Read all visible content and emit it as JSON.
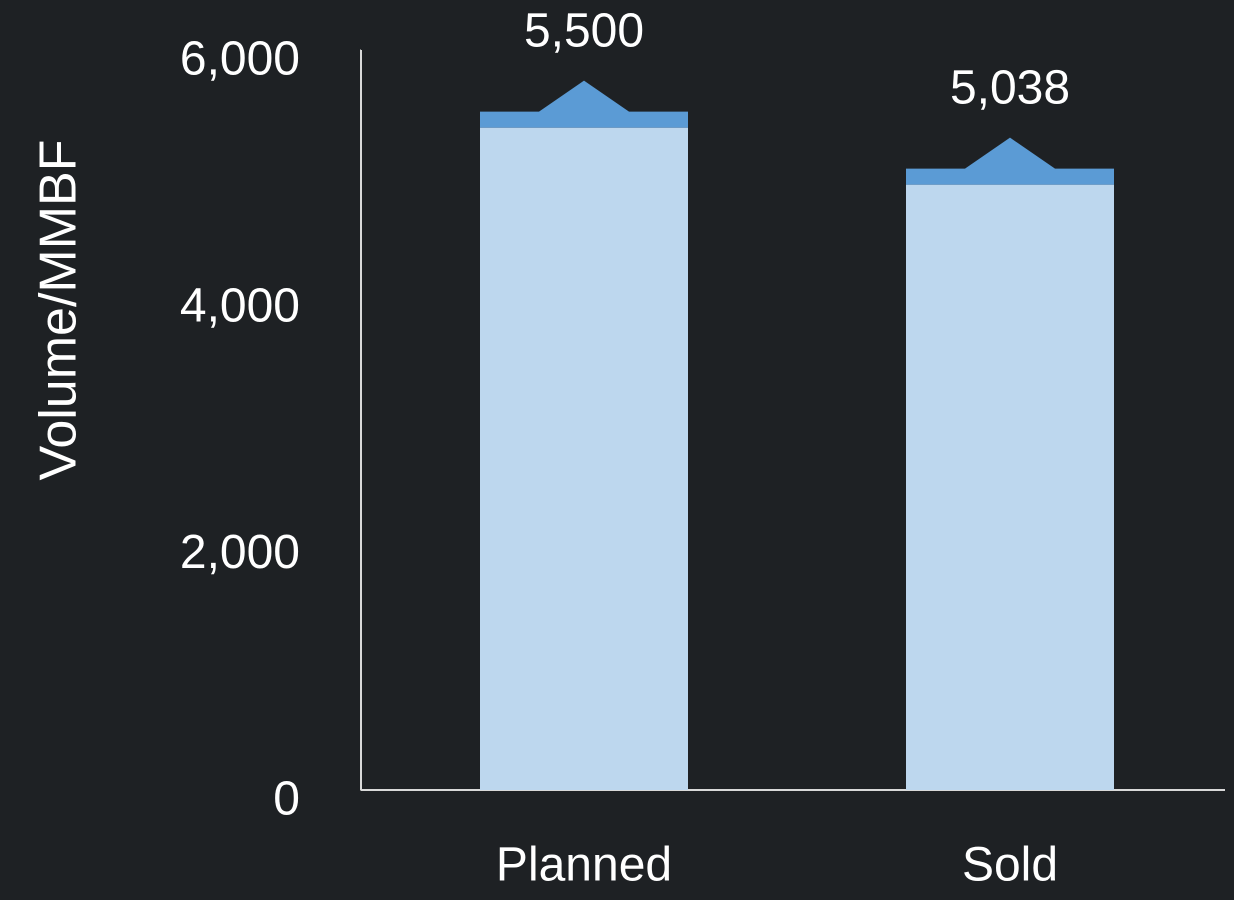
{
  "chart_data": {
    "type": "bar",
    "y_label": "Volume/MMBF",
    "categories": [
      "Planned",
      "Sold"
    ],
    "values": [
      5500,
      5038
    ],
    "value_labels": [
      "5,500",
      "5,038"
    ],
    "color": "#bdd7ee",
    "cap_color": "#5b9bd5",
    "ylim": [
      0,
      6000
    ],
    "yticks": [
      0,
      {
        "value": 2000,
        "label": "2,000"
      },
      {
        "value": 4000,
        "label": "4,000"
      },
      {
        "value": 6000,
        "label": "6,000"
      }
    ]
  }
}
